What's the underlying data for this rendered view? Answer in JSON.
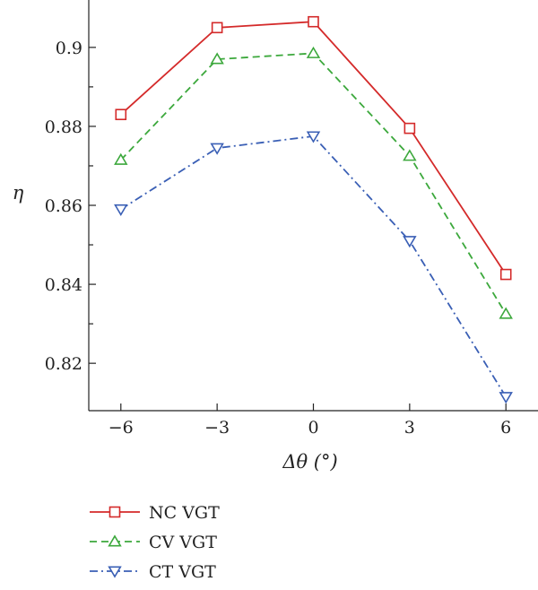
{
  "chart_data": {
    "type": "line",
    "xlabel": "Δθ (°)",
    "ylabel": "η",
    "x": [
      -6,
      -3,
      0,
      3,
      6
    ],
    "xticks": [
      "−6",
      "−3",
      "0",
      "3",
      "6"
    ],
    "yticks": [
      "0.82",
      "0.84",
      "0.86",
      "0.88",
      "0.9"
    ],
    "xlim": [
      -7,
      7
    ],
    "ylim": [
      0.808,
      0.912
    ],
    "grid": false,
    "legend_position": "bottom-left, below plot",
    "series": [
      {
        "name": "NC VGT",
        "values": [
          0.883,
          0.905,
          0.9065,
          0.8795,
          0.8425
        ],
        "color": "#d42a2a",
        "marker": "square",
        "line_style": "solid"
      },
      {
        "name": "CV VGT",
        "values": [
          0.8715,
          0.897,
          0.8985,
          0.8725,
          0.8325
        ],
        "color": "#3ca83c",
        "marker": "triangle-up",
        "line_style": "dashed"
      },
      {
        "name": "CT VGT",
        "values": [
          0.859,
          0.8745,
          0.8775,
          0.851,
          0.8115
        ],
        "color": "#3a5fb5",
        "marker": "triangle-down",
        "line_style": "dash-dot"
      }
    ]
  }
}
